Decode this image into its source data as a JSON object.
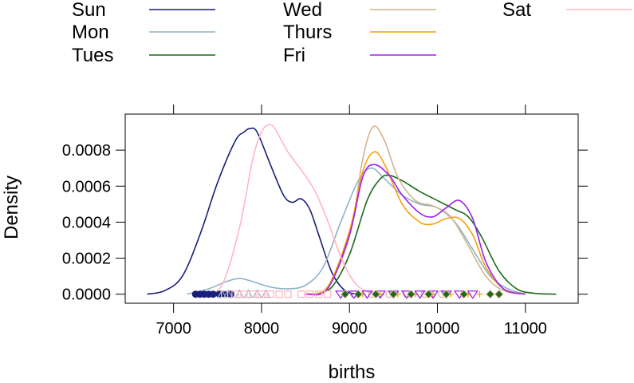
{
  "chart_data": {
    "type": "line",
    "xlabel": "births",
    "ylabel": "Density",
    "xlim": [
      6450,
      11600
    ],
    "ylim": [
      -5e-05,
      0.001
    ],
    "x_ticks": [
      7000,
      8000,
      9000,
      10000,
      11000
    ],
    "x_tick_labels": [
      "7000",
      "8000",
      "9000",
      "10000",
      "11000"
    ],
    "y_ticks": [
      0,
      0.0002,
      0.0004,
      0.0006,
      0.0008
    ],
    "y_tick_labels": [
      "0.0000",
      "0.0002",
      "0.0004",
      "0.0006",
      "0.0008"
    ],
    "legend_position": "top",
    "series": [
      {
        "name": "Sun",
        "color": "#1a1f7a",
        "x": [
          6700,
          6900,
          7100,
          7300,
          7500,
          7700,
          7800,
          7870,
          7950,
          8100,
          8250,
          8350,
          8450,
          8550,
          8650,
          8800,
          8950,
          9100
        ],
        "y": [
          0,
          2e-05,
          0.0001,
          0.00033,
          0.00062,
          0.00085,
          0.0009,
          0.00092,
          0.0009,
          0.00072,
          0.00055,
          0.00051,
          0.00053,
          0.00047,
          0.00033,
          0.00012,
          2e-05,
          0
        ]
      },
      {
        "name": "Mon",
        "color": "#8fb3c8",
        "x": [
          7150,
          7400,
          7600,
          7750,
          7900,
          8100,
          8300,
          8500,
          8700,
          8900,
          9100,
          9250,
          9400,
          9600,
          9800,
          10000,
          10200,
          10400,
          10600,
          10800,
          11000
        ],
        "y": [
          0,
          3e-05,
          7e-05,
          8.8e-05,
          7e-05,
          4e-05,
          3e-05,
          5e-05,
          0.00015,
          0.0004,
          0.00063,
          0.0007,
          0.00064,
          0.00055,
          0.0005,
          0.00048,
          0.0004,
          0.00025,
          0.0001,
          3e-05,
          0
        ]
      },
      {
        "name": "Tues",
        "color": "#1a6b1a",
        "x": [
          8600,
          8800,
          9000,
          9200,
          9350,
          9450,
          9600,
          9800,
          10000,
          10200,
          10350,
          10500,
          10700,
          10900,
          11100,
          11350
        ],
        "y": [
          0,
          4e-05,
          0.00022,
          0.00052,
          0.00064,
          0.00066,
          0.00063,
          0.00057,
          0.00052,
          0.00047,
          0.00043,
          0.00032,
          0.00013,
          3e-05,
          5e-06,
          0
        ]
      },
      {
        "name": "Wed",
        "color": "#d2b48c",
        "x": [
          8500,
          8750,
          9000,
          9150,
          9270,
          9400,
          9550,
          9750,
          9950,
          10150,
          10350,
          10550,
          10750,
          11000
        ],
        "y": [
          0,
          4e-05,
          0.00032,
          0.00075,
          0.00093,
          0.00085,
          0.00065,
          0.00052,
          0.00049,
          0.00043,
          0.00027,
          0.0001,
          2e-05,
          0
        ]
      },
      {
        "name": "Thurs",
        "color": "#f5a00a",
        "x": [
          8500,
          8750,
          9000,
          9150,
          9280,
          9400,
          9600,
          9800,
          9950,
          10100,
          10250,
          10400,
          10550,
          10750,
          11000
        ],
        "y": [
          0,
          4e-05,
          0.00035,
          0.00068,
          0.00079,
          0.00072,
          0.0005,
          0.0004,
          0.00039,
          0.00042,
          0.00042,
          0.00033,
          0.00015,
          3e-05,
          0
        ]
      },
      {
        "name": "Fri",
        "color": "#a020f0",
        "x": [
          8500,
          8750,
          9000,
          9150,
          9280,
          9450,
          9600,
          9800,
          9950,
          10100,
          10250,
          10400,
          10550,
          10750,
          11000
        ],
        "y": [
          0,
          3e-05,
          0.00033,
          0.00065,
          0.00072,
          0.00066,
          0.00055,
          0.00045,
          0.00043,
          0.00048,
          0.00052,
          0.00042,
          0.00018,
          3e-05,
          0
        ]
      },
      {
        "name": "Sat",
        "color": "#ffb6c1",
        "x": [
          7350,
          7550,
          7750,
          7900,
          8000,
          8080,
          8150,
          8300,
          8450,
          8600,
          8750,
          8900,
          9050,
          9200,
          9400
        ],
        "y": [
          0,
          5e-05,
          0.00037,
          0.00075,
          0.0009,
          0.00094,
          0.00092,
          0.00079,
          0.00069,
          0.00058,
          0.00041,
          0.00021,
          7e-05,
          1.5e-05,
          0
        ]
      }
    ],
    "rug": [
      {
        "series": "Sun",
        "x": [
          7250,
          7300,
          7350,
          7400,
          7450,
          7520,
          7580,
          7650
        ]
      },
      {
        "series": "Mon",
        "x": [
          7550,
          7620,
          7750,
          7850,
          7950,
          8050
        ]
      },
      {
        "series": "Sat",
        "x": [
          7580,
          7700,
          7800,
          7900,
          8000,
          8100,
          8200,
          8300,
          8450,
          8550,
          8650,
          8750
        ]
      },
      {
        "series": "Wed",
        "x": [
          9050,
          9250,
          9450,
          9650,
          9850,
          10050
        ]
      },
      {
        "series": "Thurs",
        "x": [
          8950,
          9150,
          9350,
          9550,
          9750,
          9950,
          10150,
          10350,
          10480
        ]
      },
      {
        "series": "Fri",
        "x": [
          8900,
          9050,
          9200,
          9350,
          9500,
          9650,
          9800,
          9950,
          10100,
          10250,
          10400
        ]
      },
      {
        "series": "Tues",
        "x": [
          8950,
          9100,
          9300,
          9500,
          9700,
          9900,
          10100,
          10300,
          10600,
          10700
        ]
      }
    ]
  }
}
